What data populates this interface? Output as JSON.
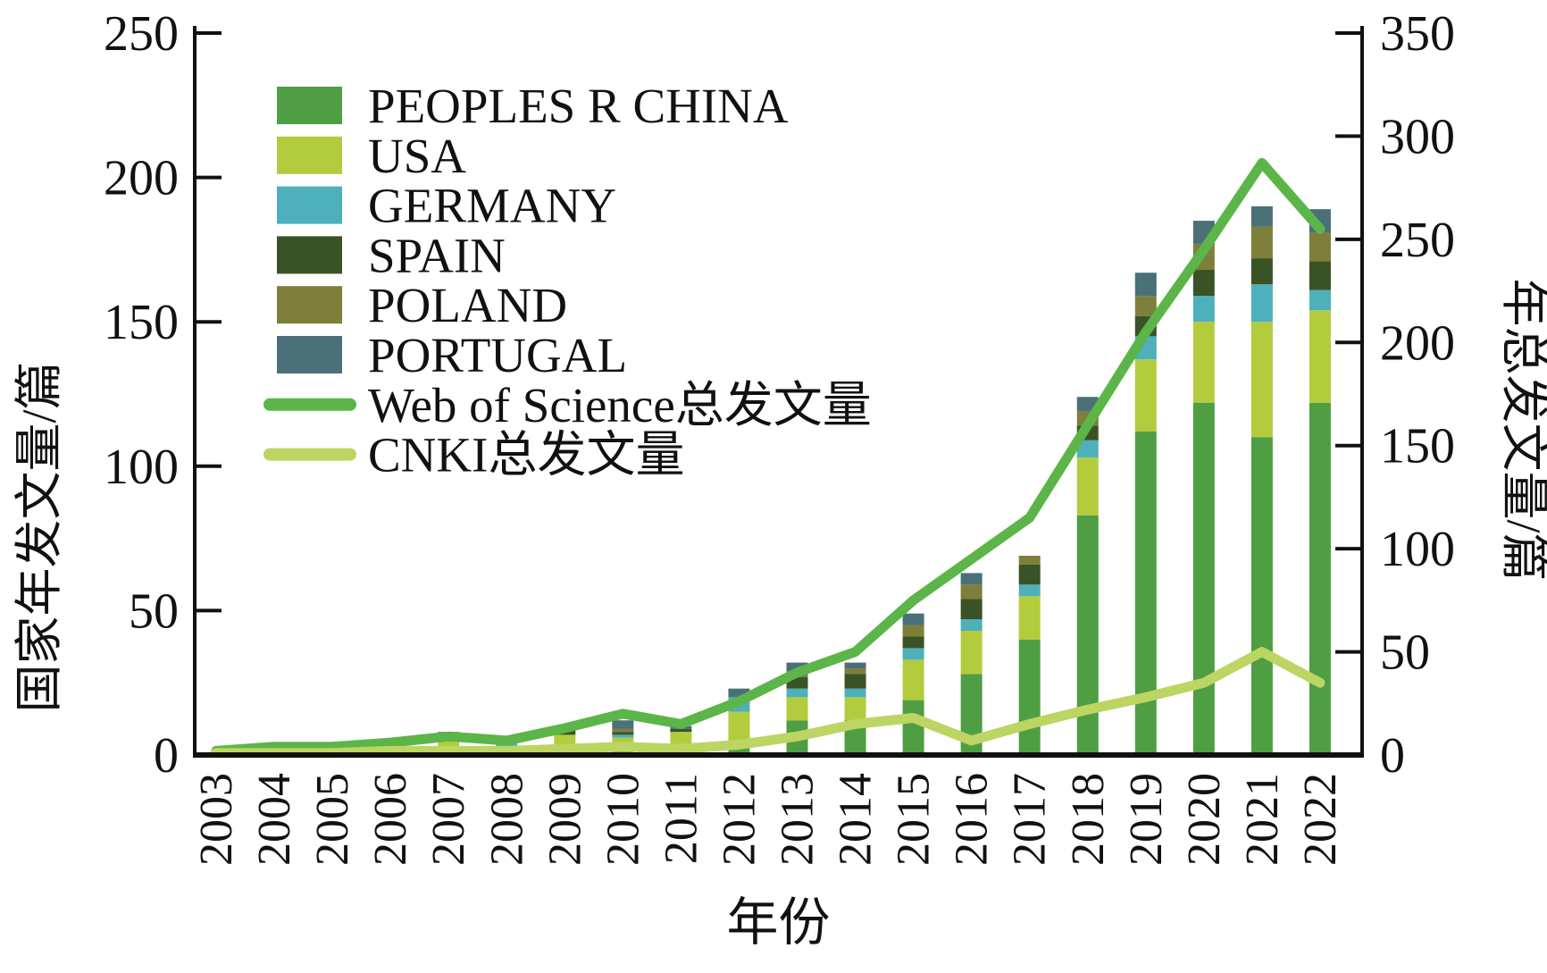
{
  "chart_data": {
    "type": "bar",
    "subtype": "stacked-bar-with-lines",
    "xlabel": "年份",
    "left_axis": {
      "label": "国家年发文量/篇",
      "ticks": [
        0,
        50,
        100,
        150,
        200,
        250
      ],
      "range": [
        0,
        250
      ]
    },
    "right_axis": {
      "label": "年总发文量/篇",
      "ticks": [
        0,
        50,
        100,
        150,
        200,
        250,
        300,
        350
      ],
      "range": [
        0,
        350
      ]
    },
    "years": [
      "2003",
      "2004",
      "2005",
      "2006",
      "2007",
      "2008",
      "2009",
      "2010",
      "2011",
      "2012",
      "2013",
      "2014",
      "2015",
      "2016",
      "2017",
      "2018",
      "2019",
      "2020",
      "2021",
      "2022"
    ],
    "series": [
      {
        "name": "PEOPLES R CHINA",
        "color": "#4f9e44",
        "values": [
          0,
          1,
          1,
          1,
          1,
          1,
          2,
          3,
          2,
          5,
          12,
          12,
          19,
          28,
          40,
          83,
          112,
          122,
          110,
          122
        ]
      },
      {
        "name": "USA",
        "color": "#b3cc3e",
        "values": [
          1,
          1,
          1,
          1,
          5,
          2,
          5,
          3,
          6,
          10,
          8,
          8,
          14,
          15,
          15,
          20,
          25,
          28,
          40,
          32
        ]
      },
      {
        "name": "GERMANY",
        "color": "#4eb0bb",
        "values": [
          0,
          1,
          0,
          0,
          0,
          2,
          0,
          1,
          0,
          5,
          3,
          3,
          4,
          4,
          4,
          6,
          8,
          9,
          13,
          7
        ]
      },
      {
        "name": "SPAIN",
        "color": "#3a5326",
        "values": [
          0,
          0,
          0,
          0,
          0,
          0,
          2,
          1,
          1,
          0,
          4,
          5,
          4,
          7,
          7,
          5,
          7,
          9,
          9,
          10
        ]
      },
      {
        "name": "POLAND",
        "color": "#7e7f3a",
        "values": [
          0,
          0,
          0,
          0,
          0,
          0,
          0,
          1,
          0,
          0,
          2,
          2,
          4,
          5,
          3,
          5,
          7,
          9,
          11,
          10
        ]
      },
      {
        "name": "PORTUGAL",
        "color": "#4a7078",
        "values": [
          0,
          0,
          0,
          0,
          2,
          1,
          0,
          3,
          1,
          3,
          3,
          2,
          4,
          4,
          0,
          5,
          8,
          8,
          7,
          8
        ]
      }
    ],
    "lines": [
      {
        "name": "Web of Science总发文量",
        "color": "#5cb548",
        "axis": "right",
        "values": [
          2,
          4,
          4,
          6,
          9,
          7,
          13,
          20,
          15,
          26,
          40,
          50,
          75,
          95,
          115,
          160,
          205,
          245,
          287,
          255
        ]
      },
      {
        "name": "CNKI总发文量",
        "color": "#bcd563",
        "axis": "right",
        "values": [
          1,
          1,
          1,
          2,
          2,
          2,
          3,
          4,
          3,
          5,
          9,
          15,
          18,
          7,
          15,
          22,
          28,
          35,
          50,
          35
        ]
      }
    ],
    "legend": {
      "position": "upper-left-inside",
      "items": [
        {
          "label": "PEOPLES R CHINA",
          "kind": "patch",
          "color": "#4f9e44"
        },
        {
          "label": "USA",
          "kind": "patch",
          "color": "#b3cc3e"
        },
        {
          "label": "GERMANY",
          "kind": "patch",
          "color": "#4eb0bb"
        },
        {
          "label": "SPAIN",
          "kind": "patch",
          "color": "#3a5326"
        },
        {
          "label": "POLAND",
          "kind": "patch",
          "color": "#7e7f3a"
        },
        {
          "label": "PORTUGAL",
          "kind": "patch",
          "color": "#4a7078"
        },
        {
          "label": "Web of Science总发文量",
          "kind": "line",
          "color": "#5cb548"
        },
        {
          "label": "CNKI总发文量",
          "kind": "line",
          "color": "#bcd563"
        }
      ]
    },
    "grid": false,
    "axis_color": "#111111"
  }
}
